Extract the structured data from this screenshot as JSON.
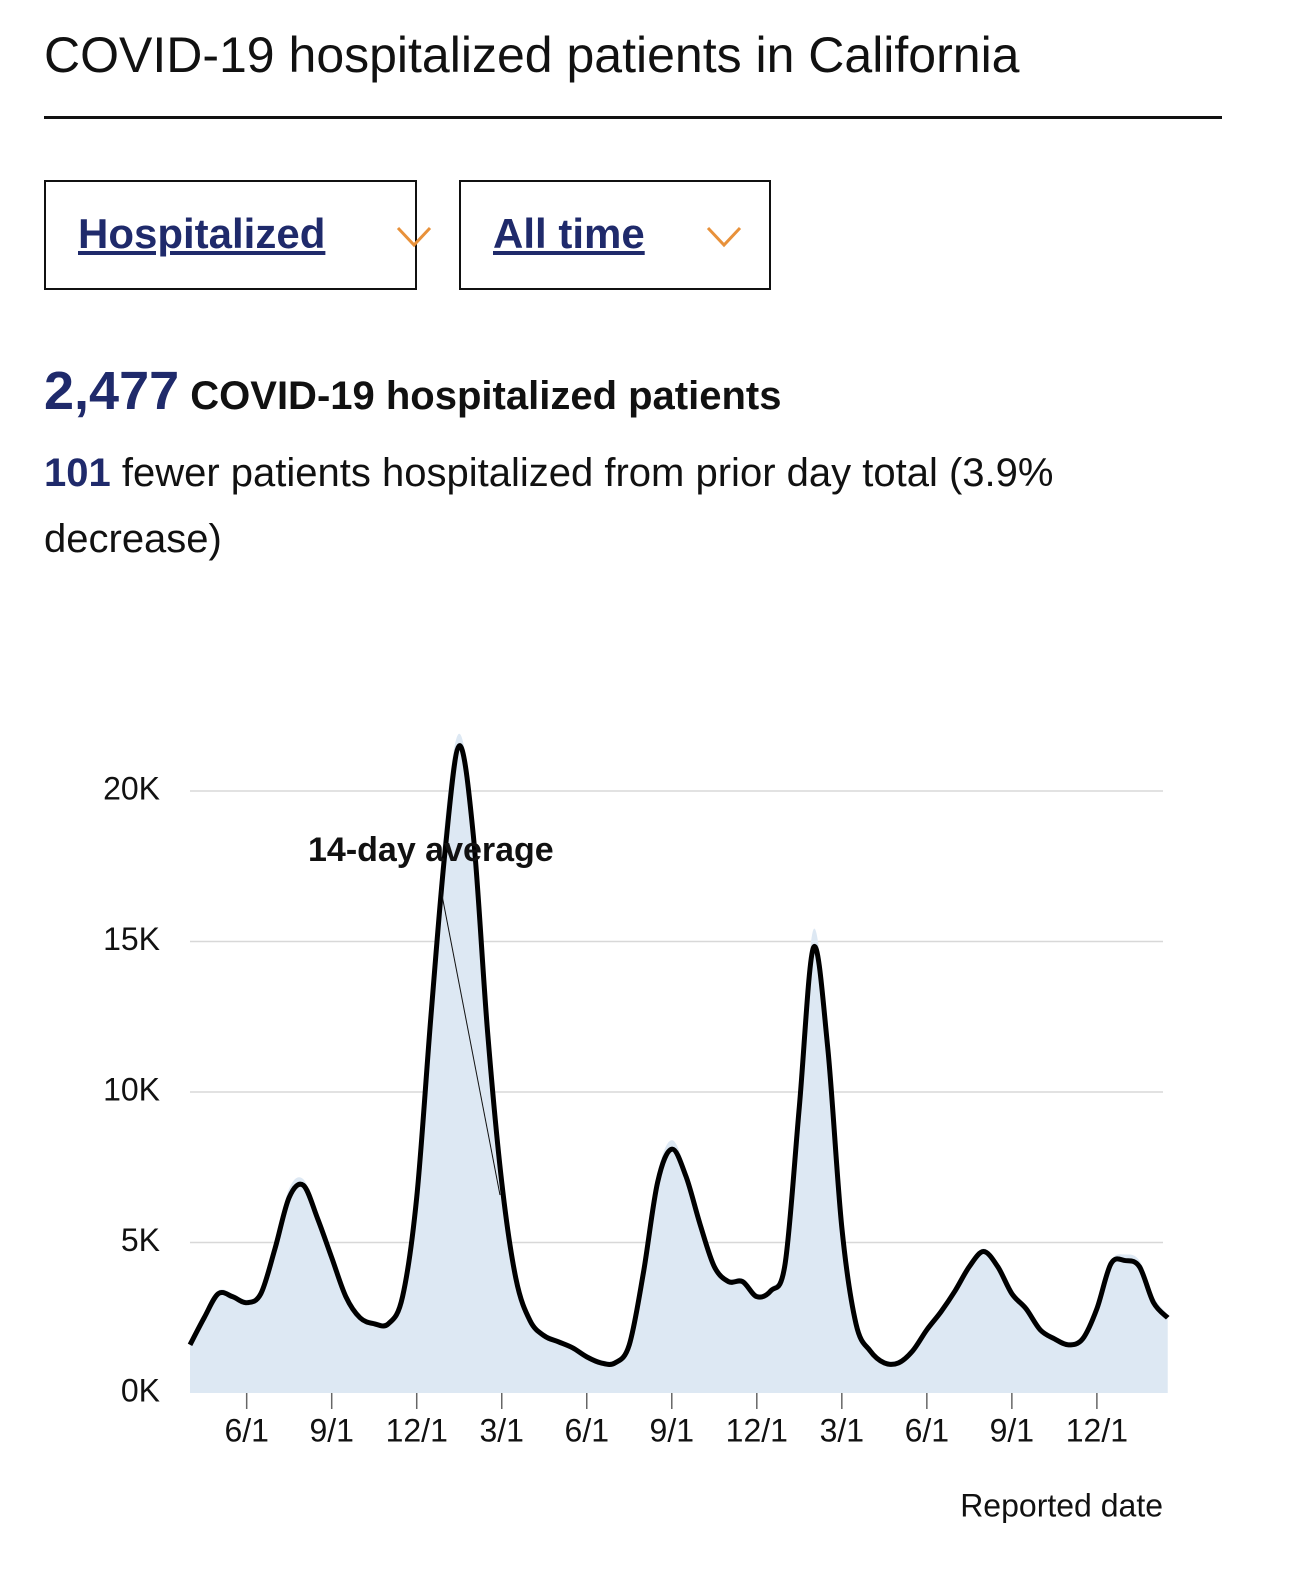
{
  "header": {
    "title": "COVID-19 hospitalized patients in California"
  },
  "filters": [
    "Hospitalized",
    "All time"
  ],
  "summary": {
    "count": "2,477",
    "count_label": "COVID-19 hospitalized patients",
    "change": "101",
    "change_text": "fewer patients hospitalized from prior day total (3.9% decrease)"
  },
  "chart_data": {
    "type": "line",
    "categories": [
      null,
      null,
      null,
      null,
      "6/1",
      null,
      null,
      null,
      null,
      null,
      "9/1",
      null,
      null,
      null,
      null,
      null,
      "12/1",
      null,
      null,
      null,
      null,
      null,
      "3/1",
      null,
      null,
      null,
      null,
      null,
      "6/1",
      null,
      null,
      null,
      null,
      null,
      "9/1",
      null,
      null,
      null,
      null,
      null,
      "12/1",
      null,
      null,
      null,
      null,
      null,
      "3/1",
      null,
      null,
      null,
      null,
      null,
      "6/1",
      null,
      null,
      null,
      null,
      null,
      "9/1",
      null,
      null,
      null,
      null,
      null,
      "12/1",
      null,
      null,
      null,
      null,
      null
    ],
    "series": [
      {
        "color": "#dde8f3",
        "values": [
          1.7,
          2.6,
          3.4,
          3.3,
          3.1,
          3.4,
          5.0,
          6.8,
          7.1,
          5.9,
          4.6,
          3.3,
          2.6,
          2.4,
          2.4,
          3.3,
          6.8,
          13.0,
          19.0,
          21.9,
          19.0,
          12.3,
          7.2,
          3.9,
          2.5,
          2.0,
          1.8,
          1.6,
          1.3,
          1.1,
          1.1,
          1.7,
          4.2,
          7.3,
          8.4,
          7.4,
          5.7,
          4.3,
          3.8,
          3.8,
          3.3,
          3.5,
          4.5,
          10.0,
          15.4,
          11.8,
          5.7,
          2.4,
          1.5,
          1.1,
          1.1,
          1.5,
          2.2,
          2.8,
          3.5,
          4.3,
          4.8,
          4.3,
          3.4,
          2.9,
          2.2,
          1.9,
          1.7,
          1.9,
          2.9,
          4.4,
          4.6,
          4.4,
          3.2,
          2.6
        ]
      },
      {
        "name": "14-day average",
        "color": "#000000",
        "values": [
          1.6,
          2.5,
          3.3,
          3.2,
          3.0,
          3.3,
          4.8,
          6.5,
          6.9,
          5.8,
          4.5,
          3.2,
          2.5,
          2.3,
          2.3,
          3.2,
          6.5,
          12.5,
          18.0,
          21.5,
          18.5,
          12.0,
          7.0,
          3.8,
          2.4,
          1.9,
          1.7,
          1.5,
          1.2,
          1.0,
          1.0,
          1.6,
          4.0,
          7.0,
          8.1,
          7.2,
          5.6,
          4.2,
          3.7,
          3.7,
          3.2,
          3.4,
          4.3,
          9.5,
          14.8,
          11.5,
          5.5,
          2.3,
          1.4,
          1.0,
          1.0,
          1.4,
          2.1,
          2.7,
          3.4,
          4.2,
          4.7,
          4.2,
          3.3,
          2.8,
          2.1,
          1.8,
          1.6,
          1.8,
          2.8,
          4.3,
          4.4,
          4.2,
          3.0,
          2.5
        ]
      }
    ],
    "ylim": [
      0,
      20
    ],
    "yticks": [
      {
        "value": 0,
        "label": "0K"
      },
      {
        "value": 5,
        "label": "5K"
      },
      {
        "value": 10,
        "label": "10K"
      },
      {
        "value": 15,
        "label": "15K"
      },
      {
        "value": 20,
        "label": "20K"
      }
    ],
    "grid": true,
    "xlabel": "Reported date"
  }
}
